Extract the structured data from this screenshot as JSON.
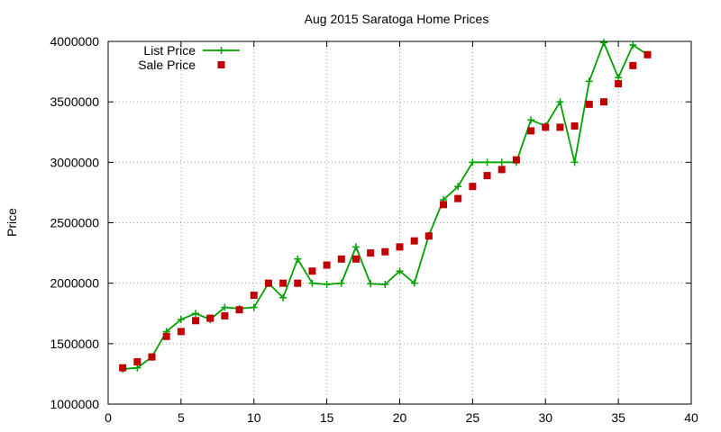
{
  "chart_data": {
    "type": "line",
    "title": "Aug 2015 Saratoga Home Prices",
    "xlabel": "",
    "ylabel": "Price",
    "xlim": [
      0,
      40
    ],
    "ylim": [
      1000000,
      4000000
    ],
    "xticks": [
      0,
      5,
      10,
      15,
      20,
      25,
      30,
      35,
      40
    ],
    "yticks": [
      1000000,
      1500000,
      2000000,
      2500000,
      3000000,
      3500000,
      4000000
    ],
    "grid": true,
    "legend_position": "top-left",
    "series": [
      {
        "name": "List Price",
        "style": "line-with-plus-markers",
        "color": "#00a000",
        "x": [
          1,
          2,
          3,
          4,
          5,
          6,
          7,
          8,
          9,
          10,
          11,
          12,
          13,
          14,
          15,
          16,
          17,
          18,
          19,
          20,
          21,
          22,
          23,
          24,
          25,
          26,
          27,
          28,
          29,
          30,
          31,
          32,
          33,
          34,
          35,
          36,
          37
        ],
        "values": [
          1290000,
          1300000,
          1390000,
          1600000,
          1700000,
          1750000,
          1700000,
          1800000,
          1790000,
          1800000,
          2000000,
          1880000,
          2200000,
          2000000,
          1990000,
          2000000,
          2300000,
          1995000,
          1990000,
          2100000,
          2000000,
          2395000,
          2690000,
          2800000,
          3000000,
          3000000,
          3000000,
          3000000,
          3350000,
          3300000,
          3500000,
          3000000,
          3670000,
          3990000,
          3700000,
          3970000,
          3890000
        ]
      },
      {
        "name": "Sale Price",
        "style": "square-markers",
        "color": "#c00000",
        "x": [
          1,
          2,
          3,
          4,
          5,
          6,
          7,
          8,
          9,
          10,
          11,
          12,
          13,
          14,
          15,
          16,
          17,
          18,
          19,
          20,
          21,
          22,
          23,
          24,
          25,
          26,
          27,
          28,
          29,
          30,
          31,
          32,
          33,
          34,
          35,
          36,
          37
        ],
        "values": [
          1300000,
          1350000,
          1390000,
          1560000,
          1600000,
          1690000,
          1710000,
          1730000,
          1780000,
          1900000,
          2000000,
          2000000,
          2000000,
          2100000,
          2150000,
          2200000,
          2200000,
          2250000,
          2260000,
          2300000,
          2350000,
          2390000,
          2650000,
          2700000,
          2800000,
          2890000,
          2940000,
          3020000,
          3260000,
          3290000,
          3290000,
          3300000,
          3480000,
          3500000,
          3650000,
          3800000,
          3890000
        ]
      }
    ]
  }
}
